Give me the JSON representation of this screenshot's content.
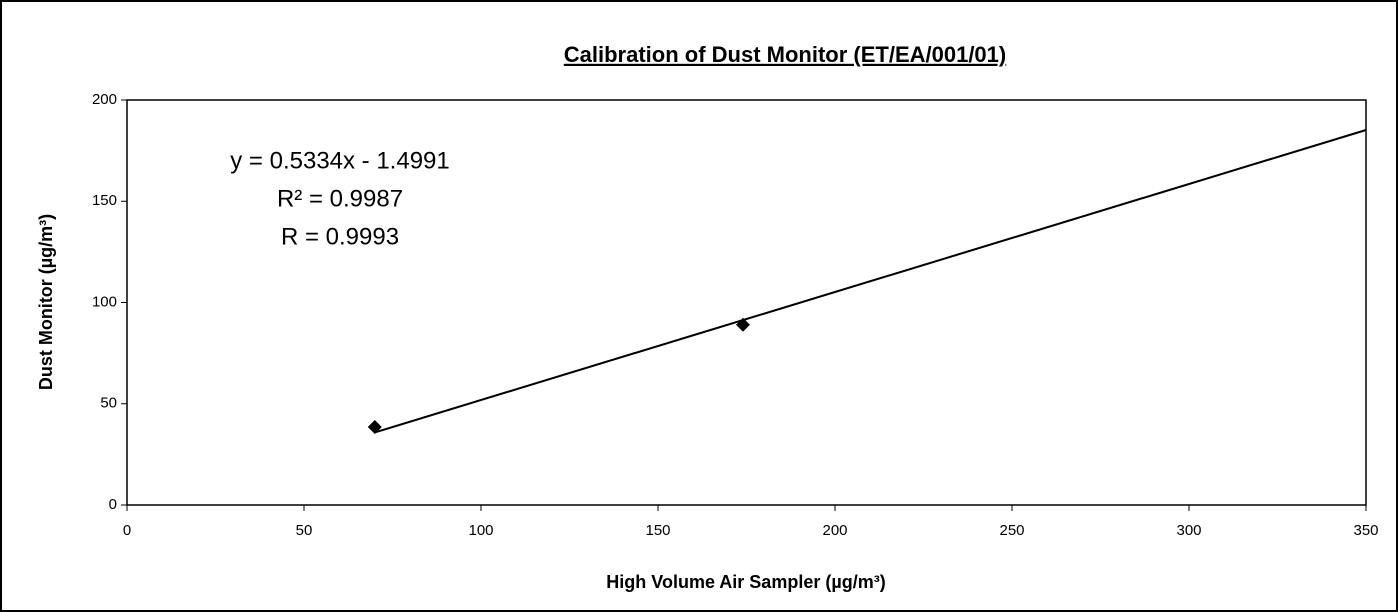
{
  "chart_data": {
    "type": "scatter",
    "title": "Calibration of Dust Monitor (ET/EA/001/01)",
    "xlabel": "High Volume Air Sampler (µg/m³)",
    "ylabel": "Dust Monitor (µg/m³)",
    "series": [
      {
        "name": "Dust Monitor",
        "color": "#000000",
        "x": [
          70,
          174
        ],
        "values": [
          38.5,
          89
        ]
      }
    ],
    "trendline": {
      "slope": 0.5334,
      "intercept": -1.4991,
      "color": "#000000"
    },
    "annotations": [
      "y = 0.5334x - 1.4991",
      "R² = 0.9987",
      "R = 0.9993"
    ],
    "xlim": [
      0,
      350
    ],
    "xticks": [
      0,
      50,
      100,
      150,
      200,
      250,
      300,
      350
    ],
    "ylim": [
      0,
      200
    ],
    "yticks": [
      0,
      50,
      100,
      150,
      200
    ],
    "grid": false
  }
}
